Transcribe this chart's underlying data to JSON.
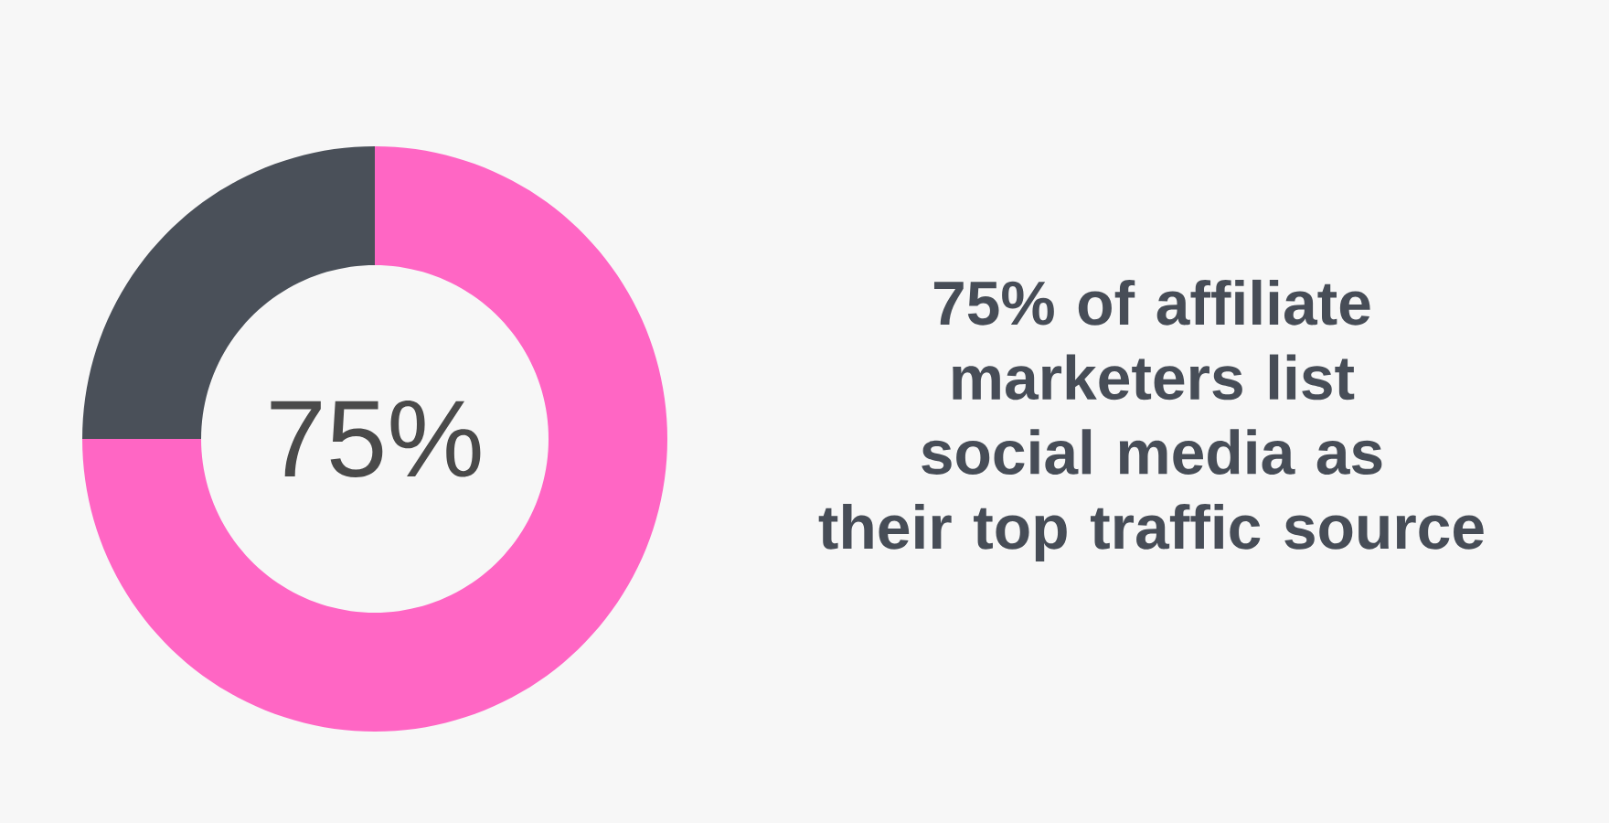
{
  "chart_data": {
    "type": "donut",
    "title": "75% of affiliate marketers list social media as their top traffic source",
    "categories": [
      null,
      null
    ],
    "values": [
      75,
      25
    ],
    "colors": [
      "#ff66c4",
      "#4a5059"
    ],
    "value_labels": [
      "75%",
      null
    ]
  }
}
